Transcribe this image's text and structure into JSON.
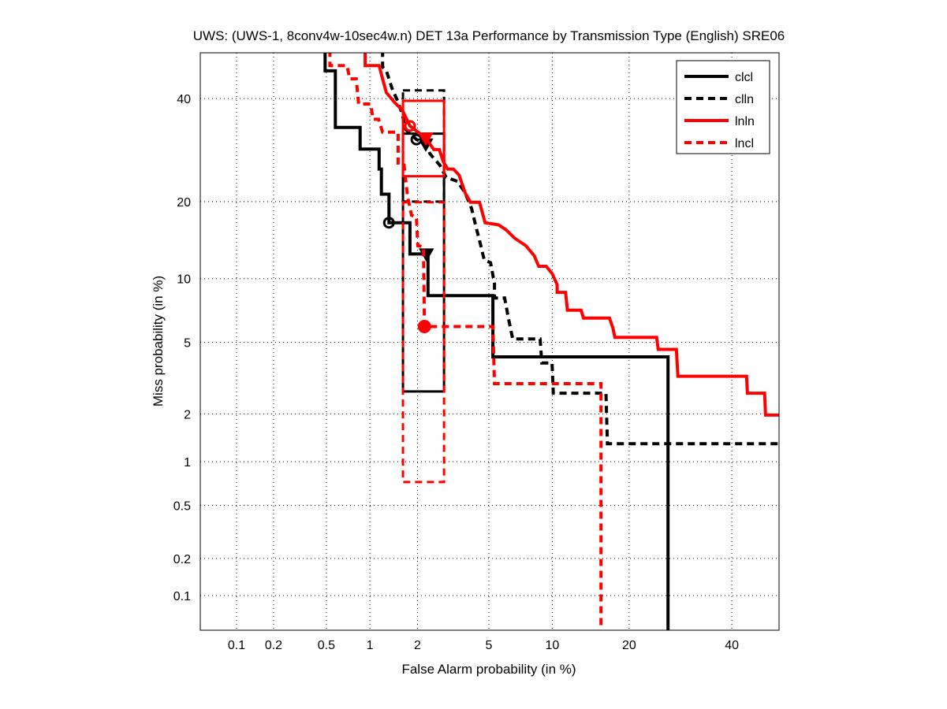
{
  "chart_data": {
    "type": "line",
    "title": "UWS: (UWS-1, 8conv4w-10sec4w.n) DET 13a Performance by Transmission Type (English) SRE06",
    "xlabel": "False Alarm probability (in %)",
    "ylabel": "Miss probability (in %)",
    "xscale": "probit",
    "yscale": "probit",
    "xlim": [
      0.05,
      51
    ],
    "ylim": [
      0.05,
      51
    ],
    "grid": true,
    "legend_position": "top-right",
    "xticks": [
      0.1,
      0.2,
      0.5,
      1,
      2,
      5,
      10,
      20,
      40
    ],
    "xtick_labels": [
      "0.1",
      "0.2",
      "0.5",
      "1",
      "2",
      "5",
      "10",
      "20",
      "40"
    ],
    "yticks": [
      0.1,
      0.2,
      0.5,
      1,
      2,
      5,
      10,
      20,
      40
    ],
    "ytick_labels": [
      "0.1",
      "0.2",
      "0.5",
      "1",
      "2",
      "5",
      "10",
      "20",
      "40"
    ],
    "series": [
      {
        "name": "clcl",
        "color": "#000000",
        "dashed": false,
        "points": [
          [
            0.354,
            51
          ],
          [
            0.49,
            51
          ],
          [
            0.49,
            46.2
          ],
          [
            0.58,
            46.2
          ],
          [
            0.58,
            33.8
          ],
          [
            0.86,
            33.8
          ],
          [
            0.86,
            29.4
          ],
          [
            1.15,
            29.4
          ],
          [
            1.15,
            25.6
          ],
          [
            1.19,
            25.6
          ],
          [
            1.19,
            21.2
          ],
          [
            1.33,
            21.2
          ],
          [
            1.33,
            16.8
          ],
          [
            1.8,
            16.8
          ],
          [
            1.8,
            12.7
          ],
          [
            2.31,
            12.7
          ],
          [
            2.31,
            8.4
          ],
          [
            5.24,
            8.4
          ],
          [
            5.24,
            4.2
          ],
          [
            26.8,
            4.2
          ],
          [
            26.8,
            0.04
          ]
        ],
        "circle": [
          1.33,
          16.8
        ],
        "circle_filled": false,
        "triangle": [
          2.26,
          12.7
        ],
        "box": {
          "x": [
            1.63,
            2.86
          ],
          "y": [
            2.71,
            32.5
          ]
        }
      },
      {
        "name": "clln",
        "color": "#000000",
        "dashed": true,
        "points": [
          [
            1.21,
            51
          ],
          [
            1.21,
            47.1
          ],
          [
            1.28,
            46.2
          ],
          [
            1.39,
            42.3
          ],
          [
            1.52,
            39.2
          ],
          [
            1.61,
            36.6
          ],
          [
            1.7,
            33.3
          ],
          [
            1.97,
            31.3
          ],
          [
            2.24,
            30.4
          ],
          [
            2.37,
            28.5
          ],
          [
            2.71,
            26.3
          ],
          [
            2.94,
            24.1
          ],
          [
            3.4,
            23.4
          ],
          [
            3.75,
            21.4
          ],
          [
            4.06,
            18.9
          ],
          [
            4.3,
            16
          ],
          [
            4.47,
            14.4
          ],
          [
            4.73,
            12
          ],
          [
            5.1,
            11.7
          ],
          [
            5.34,
            9.5
          ],
          [
            5.34,
            8.2
          ],
          [
            6.0,
            8.2
          ],
          [
            6.28,
            6.5
          ],
          [
            6.57,
            5.2
          ],
          [
            8.83,
            5.2
          ],
          [
            8.98,
            3.9
          ],
          [
            9.97,
            3.9
          ],
          [
            10.1,
            2.65
          ],
          [
            16.5,
            2.65
          ],
          [
            16.7,
            1.31
          ],
          [
            51,
            1.31
          ]
        ],
        "circle": [
          1.97,
          31.3
        ],
        "circle_filled": false,
        "triangle": [
          2.24,
          30.4
        ],
        "box": {
          "x": [
            1.63,
            2.86
          ],
          "y": [
            20,
            41.8
          ]
        }
      },
      {
        "name": "lnln",
        "color": "#ff0000",
        "dashed": false,
        "points": [
          [
            0.93,
            51
          ],
          [
            0.93,
            47.4
          ],
          [
            1.15,
            47.4
          ],
          [
            1.21,
            44.4
          ],
          [
            1.28,
            41.3
          ],
          [
            1.44,
            39.2
          ],
          [
            1.61,
            37.5
          ],
          [
            1.8,
            34.1
          ],
          [
            2.24,
            31.6
          ],
          [
            2.5,
            29.3
          ],
          [
            2.69,
            29.3
          ],
          [
            2.83,
            27
          ],
          [
            3.0,
            25.6
          ],
          [
            3.23,
            25.6
          ],
          [
            3.47,
            24.5
          ],
          [
            3.75,
            21.4
          ],
          [
            4.0,
            19.9
          ],
          [
            4.47,
            19.9
          ],
          [
            4.78,
            16.8
          ],
          [
            5.6,
            16.5
          ],
          [
            6.1,
            15.8
          ],
          [
            6.7,
            14.7
          ],
          [
            7.6,
            13.7
          ],
          [
            8.3,
            12.5
          ],
          [
            8.7,
            11.3
          ],
          [
            9.4,
            11.3
          ],
          [
            10,
            10.5
          ],
          [
            10.5,
            9.4
          ],
          [
            10.5,
            8.7
          ],
          [
            11.4,
            8.7
          ],
          [
            11.6,
            7.2
          ],
          [
            13.2,
            7.2
          ],
          [
            13.5,
            6.6
          ],
          [
            17,
            6.6
          ],
          [
            17.5,
            5.9
          ],
          [
            17.8,
            5.3
          ],
          [
            24.7,
            5.3
          ],
          [
            25,
            4.6
          ],
          [
            28.4,
            4.6
          ],
          [
            28.7,
            3.3
          ],
          [
            43.3,
            3.3
          ],
          [
            43.5,
            2.65
          ],
          [
            47.4,
            2.65
          ],
          [
            47.6,
            1.97
          ],
          [
            51,
            1.97
          ]
        ],
        "circle": [
          1.8,
          34.1
        ],
        "circle_filled": false,
        "triangle": [
          2.24,
          31.6
        ],
        "box": {
          "x": [
            1.63,
            2.86
          ],
          "y": [
            24.3,
            39.5
          ]
        }
      },
      {
        "name": "lncl",
        "color": "#ff0000",
        "dashed": true,
        "points": [
          [
            0.53,
            51
          ],
          [
            0.53,
            47.4
          ],
          [
            0.7,
            47.4
          ],
          [
            0.73,
            44.4
          ],
          [
            0.81,
            44.4
          ],
          [
            0.84,
            38.8
          ],
          [
            1.01,
            38.8
          ],
          [
            1.05,
            35.5
          ],
          [
            1.14,
            35.5
          ],
          [
            1.21,
            32.8
          ],
          [
            1.52,
            32.8
          ],
          [
            1.52,
            26.7
          ],
          [
            1.65,
            26.7
          ],
          [
            1.74,
            20.8
          ],
          [
            1.84,
            17.9
          ],
          [
            1.97,
            17.6
          ],
          [
            2.01,
            13.7
          ],
          [
            2.17,
            13.6
          ],
          [
            2.2,
            6.0
          ],
          [
            5.24,
            6.0
          ],
          [
            5.34,
            3.0
          ],
          [
            15.8,
            3.0
          ],
          [
            15.8,
            0.04
          ]
        ],
        "circle": [
          2.2,
          6.0
        ],
        "circle_filled": true,
        "triangle": null,
        "box": {
          "x": [
            1.63,
            2.86
          ],
          "y": [
            0.73,
            19.9
          ]
        }
      }
    ]
  }
}
